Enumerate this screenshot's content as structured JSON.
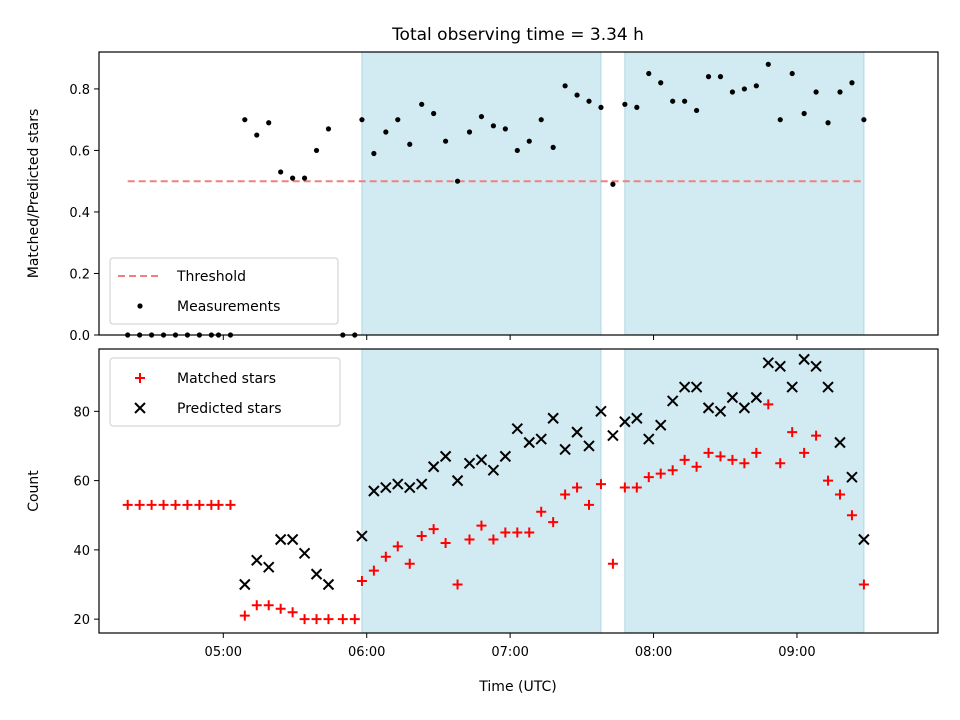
{
  "chart_data": {
    "title": "Total observing time = 3.34 h",
    "xlabel": "Time (UTC)",
    "x_ticks": [
      "05:00",
      "06:00",
      "07:00",
      "08:00",
      "09:00"
    ],
    "x_range": [
      "04:08",
      "09:59"
    ],
    "observing_windows": [
      [
        "05:58",
        "07:38"
      ],
      [
        "07:48",
        "09:28"
      ]
    ],
    "colors": {
      "window": "#add8e6",
      "threshold": "#f08080",
      "matched": "#ff0000",
      "predicted": "#000000",
      "measurements": "#000000"
    },
    "panels": [
      {
        "type": "scatter",
        "ylabel": "Matched/Predicted stars",
        "ylim": [
          0,
          0.92
        ],
        "y_ticks": [
          "0.0",
          "0.2",
          "0.4",
          "0.6",
          "0.8"
        ],
        "legend": "lower-left",
        "threshold": {
          "name": "Threshold",
          "value": 0.5,
          "x_range": [
            "04:20",
            "09:28"
          ]
        },
        "series": [
          {
            "name": "Measurements",
            "points": [
              [
                "04:20",
                0.0
              ],
              [
                "04:25",
                0.0
              ],
              [
                "04:30",
                0.0
              ],
              [
                "04:35",
                0.0
              ],
              [
                "04:40",
                0.0
              ],
              [
                "04:45",
                0.0
              ],
              [
                "04:50",
                0.0
              ],
              [
                "04:55",
                0.0
              ],
              [
                "04:58",
                0.0
              ],
              [
                "05:03",
                0.0
              ],
              [
                "05:50",
                0.0
              ],
              [
                "05:55",
                0.0
              ],
              [
                "05:09",
                0.7
              ],
              [
                "05:14",
                0.65
              ],
              [
                "05:19",
                0.69
              ],
              [
                "05:24",
                0.53
              ],
              [
                "05:29",
                0.51
              ],
              [
                "05:34",
                0.51
              ],
              [
                "05:39",
                0.6
              ],
              [
                "05:44",
                0.67
              ],
              [
                "05:58",
                0.7
              ],
              [
                "06:03",
                0.59
              ],
              [
                "06:08",
                0.66
              ],
              [
                "06:13",
                0.7
              ],
              [
                "06:18",
                0.62
              ],
              [
                "06:23",
                0.75
              ],
              [
                "06:28",
                0.72
              ],
              [
                "06:33",
                0.63
              ],
              [
                "06:38",
                0.5
              ],
              [
                "06:43",
                0.66
              ],
              [
                "06:48",
                0.71
              ],
              [
                "06:53",
                0.68
              ],
              [
                "06:58",
                0.67
              ],
              [
                "07:03",
                0.6
              ],
              [
                "07:08",
                0.63
              ],
              [
                "07:13",
                0.7
              ],
              [
                "07:18",
                0.61
              ],
              [
                "07:23",
                0.81
              ],
              [
                "07:28",
                0.78
              ],
              [
                "07:33",
                0.76
              ],
              [
                "07:38",
                0.74
              ],
              [
                "07:43",
                0.49
              ],
              [
                "07:48",
                0.75
              ],
              [
                "07:53",
                0.74
              ],
              [
                "07:58",
                0.85
              ],
              [
                "08:03",
                0.82
              ],
              [
                "08:08",
                0.76
              ],
              [
                "08:13",
                0.76
              ],
              [
                "08:18",
                0.73
              ],
              [
                "08:23",
                0.84
              ],
              [
                "08:28",
                0.84
              ],
              [
                "08:33",
                0.79
              ],
              [
                "08:38",
                0.8
              ],
              [
                "08:43",
                0.81
              ],
              [
                "08:48",
                0.88
              ],
              [
                "08:53",
                0.7
              ],
              [
                "08:58",
                0.85
              ],
              [
                "09:03",
                0.72
              ],
              [
                "09:08",
                0.79
              ],
              [
                "09:13",
                0.69
              ],
              [
                "09:18",
                0.79
              ],
              [
                "09:23",
                0.82
              ],
              [
                "09:28",
                0.7
              ]
            ]
          }
        ]
      },
      {
        "type": "scatter",
        "ylabel": "Count",
        "ylim": [
          16,
          98
        ],
        "y_ticks": [
          "20",
          "40",
          "60",
          "80"
        ],
        "legend": "top-left",
        "series": [
          {
            "name": "Matched stars",
            "marker": "+",
            "points": [
              [
                "04:20",
                53
              ],
              [
                "04:25",
                53
              ],
              [
                "04:30",
                53
              ],
              [
                "04:35",
                53
              ],
              [
                "04:40",
                53
              ],
              [
                "04:45",
                53
              ],
              [
                "04:50",
                53
              ],
              [
                "04:55",
                53
              ],
              [
                "04:58",
                53
              ],
              [
                "05:03",
                53
              ],
              [
                "05:09",
                21
              ],
              [
                "05:14",
                24
              ],
              [
                "05:19",
                24
              ],
              [
                "05:24",
                23
              ],
              [
                "05:29",
                22
              ],
              [
                "05:34",
                20
              ],
              [
                "05:39",
                20
              ],
              [
                "05:44",
                20
              ],
              [
                "05:50",
                20
              ],
              [
                "05:55",
                20
              ],
              [
                "05:58",
                31
              ],
              [
                "06:03",
                34
              ],
              [
                "06:08",
                38
              ],
              [
                "06:13",
                41
              ],
              [
                "06:18",
                36
              ],
              [
                "06:23",
                44
              ],
              [
                "06:28",
                46
              ],
              [
                "06:33",
                42
              ],
              [
                "06:38",
                30
              ],
              [
                "06:43",
                43
              ],
              [
                "06:48",
                47
              ],
              [
                "06:53",
                43
              ],
              [
                "06:58",
                45
              ],
              [
                "07:03",
                45
              ],
              [
                "07:08",
                45
              ],
              [
                "07:13",
                51
              ],
              [
                "07:18",
                48
              ],
              [
                "07:23",
                56
              ],
              [
                "07:28",
                58
              ],
              [
                "07:33",
                53
              ],
              [
                "07:38",
                59
              ],
              [
                "07:43",
                36
              ],
              [
                "07:48",
                58
              ],
              [
                "07:53",
                58
              ],
              [
                "07:58",
                61
              ],
              [
                "08:03",
                62
              ],
              [
                "08:08",
                63
              ],
              [
                "08:13",
                66
              ],
              [
                "08:18",
                64
              ],
              [
                "08:23",
                68
              ],
              [
                "08:28",
                67
              ],
              [
                "08:33",
                66
              ],
              [
                "08:38",
                65
              ],
              [
                "08:43",
                68
              ],
              [
                "08:48",
                82
              ],
              [
                "08:53",
                65
              ],
              [
                "08:58",
                74
              ],
              [
                "09:03",
                68
              ],
              [
                "09:08",
                73
              ],
              [
                "09:13",
                60
              ],
              [
                "09:18",
                56
              ],
              [
                "09:23",
                50
              ],
              [
                "09:28",
                30
              ]
            ]
          },
          {
            "name": "Predicted stars",
            "marker": "x",
            "points": [
              [
                "05:09",
                30
              ],
              [
                "05:14",
                37
              ],
              [
                "05:19",
                35
              ],
              [
                "05:24",
                43
              ],
              [
                "05:29",
                43
              ],
              [
                "05:34",
                39
              ],
              [
                "05:39",
                33
              ],
              [
                "05:44",
                30
              ],
              [
                "05:58",
                44
              ],
              [
                "06:03",
                57
              ],
              [
                "06:08",
                58
              ],
              [
                "06:13",
                59
              ],
              [
                "06:18",
                58
              ],
              [
                "06:23",
                59
              ],
              [
                "06:28",
                64
              ],
              [
                "06:33",
                67
              ],
              [
                "06:38",
                60
              ],
              [
                "06:43",
                65
              ],
              [
                "06:48",
                66
              ],
              [
                "06:53",
                63
              ],
              [
                "06:58",
                67
              ],
              [
                "07:03",
                75
              ],
              [
                "07:08",
                71
              ],
              [
                "07:13",
                72
              ],
              [
                "07:18",
                78
              ],
              [
                "07:23",
                69
              ],
              [
                "07:28",
                74
              ],
              [
                "07:33",
                70
              ],
              [
                "07:38",
                80
              ],
              [
                "07:43",
                73
              ],
              [
                "07:48",
                77
              ],
              [
                "07:53",
                78
              ],
              [
                "07:58",
                72
              ],
              [
                "08:03",
                76
              ],
              [
                "08:08",
                83
              ],
              [
                "08:13",
                87
              ],
              [
                "08:18",
                87
              ],
              [
                "08:23",
                81
              ],
              [
                "08:28",
                80
              ],
              [
                "08:33",
                84
              ],
              [
                "08:38",
                81
              ],
              [
                "08:43",
                84
              ],
              [
                "08:48",
                94
              ],
              [
                "08:53",
                93
              ],
              [
                "08:58",
                87
              ],
              [
                "09:03",
                95
              ],
              [
                "09:08",
                93
              ],
              [
                "09:13",
                87
              ],
              [
                "09:18",
                71
              ],
              [
                "09:23",
                61
              ],
              [
                "09:28",
                43
              ]
            ]
          }
        ]
      }
    ]
  }
}
